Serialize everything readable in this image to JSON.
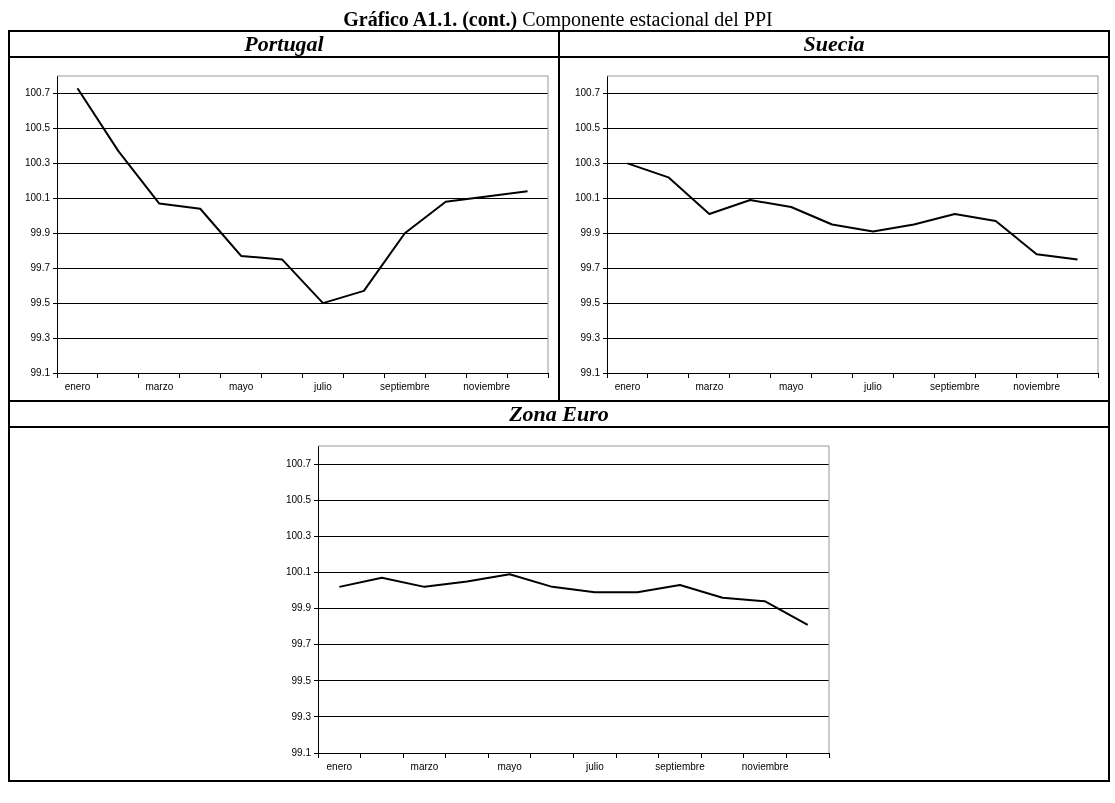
{
  "chart_data": [
    {
      "type": "line",
      "title": "Portugal",
      "annotations": [
        "Gráfico A1.1. (cont.)",
        "Componente estacional del PPI"
      ],
      "categories": [
        "enero",
        null,
        "marzo",
        null,
        "mayo",
        null,
        "julio",
        null,
        "septiembre",
        null,
        "noviembre",
        null
      ],
      "series": [
        {
          "color": "#000000",
          "values": [
            100.73,
            100.37,
            100.07,
            100.04,
            99.77,
            99.75,
            99.5,
            99.57,
            99.9,
            100.08,
            100.11,
            100.14
          ]
        }
      ],
      "ylim": [
        99.1,
        100.8
      ],
      "yticks": [
        99.1,
        99.3,
        99.5,
        99.7,
        99.9,
        100.1,
        100.3,
        100.5,
        100.7
      ],
      "grid": "y",
      "legend": false,
      "marker": "none",
      "line_style": "solid"
    },
    {
      "type": "line",
      "title": "Suecia",
      "categories": [
        "enero",
        null,
        "marzo",
        null,
        "mayo",
        null,
        "julio",
        null,
        "septiembre",
        null,
        "noviembre",
        null
      ],
      "series": [
        {
          "color": "#000000",
          "values": [
            100.3,
            100.22,
            100.01,
            100.09,
            100.05,
            99.95,
            99.91,
            99.95,
            100.01,
            99.97,
            99.78,
            99.75
          ]
        }
      ],
      "ylim": [
        99.1,
        100.8
      ],
      "yticks": [
        99.1,
        99.3,
        99.5,
        99.7,
        99.9,
        100.1,
        100.3,
        100.5,
        100.7
      ],
      "grid": "y",
      "legend": false,
      "marker": "none",
      "line_style": "solid"
    },
    {
      "type": "line",
      "title": "Zona Euro",
      "categories": [
        "enero",
        null,
        "marzo",
        null,
        "mayo",
        null,
        "julio",
        null,
        "septiembre",
        null,
        "noviembre",
        null
      ],
      "series": [
        {
          "color": "#000000",
          "values": [
            100.02,
            100.07,
            100.02,
            100.05,
            100.09,
            100.02,
            99.99,
            99.99,
            100.03,
            99.96,
            99.94,
            99.81
          ]
        }
      ],
      "ylim": [
        99.1,
        100.8
      ],
      "yticks": [
        99.1,
        99.3,
        99.5,
        99.7,
        99.9,
        100.1,
        100.3,
        100.5,
        100.7
      ],
      "grid": "y",
      "legend": false,
      "marker": "none",
      "line_style": "solid"
    }
  ]
}
